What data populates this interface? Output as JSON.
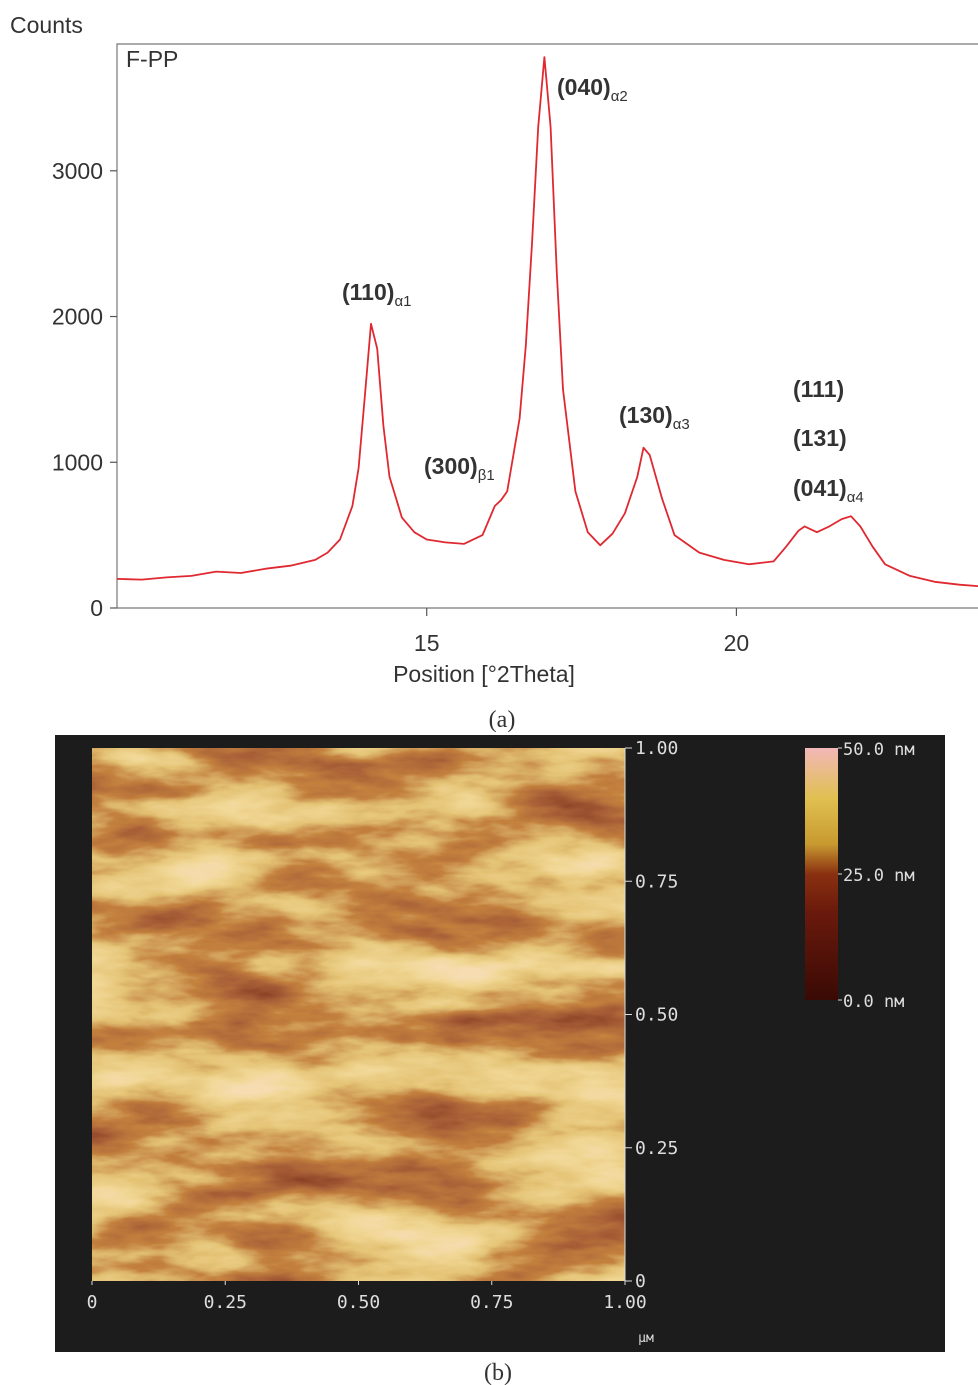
{
  "chart_data": [
    {
      "type": "line",
      "y_label": "Counts",
      "x_label": "Position [°2Theta]",
      "caption": "(a)",
      "xlim": [
        10,
        23.9
      ],
      "ylim": [
        0,
        3870
      ],
      "xticks": [
        15,
        20
      ],
      "yticks": [
        0,
        1000,
        2000,
        3000
      ],
      "x": [
        10.0,
        10.4,
        10.8,
        11.2,
        11.6,
        12.0,
        12.4,
        12.8,
        13.2,
        13.4,
        13.6,
        13.8,
        13.9,
        14.0,
        14.1,
        14.2,
        14.3,
        14.4,
        14.6,
        14.8,
        15.0,
        15.3,
        15.6,
        15.9,
        16.1,
        16.2,
        16.3,
        16.5,
        16.6,
        16.7,
        16.8,
        16.9,
        17.0,
        17.1,
        17.2,
        17.4,
        17.6,
        17.8,
        18.0,
        18.2,
        18.4,
        18.5,
        18.6,
        18.8,
        19.0,
        19.4,
        19.8,
        20.2,
        20.6,
        20.8,
        21.0,
        21.1,
        21.3,
        21.5,
        21.7,
        21.85,
        22.0,
        22.2,
        22.4,
        22.8,
        23.2,
        23.6,
        23.9
      ],
      "series": [
        {
          "name": "F-PP",
          "color": "#e02830",
          "values": [
            200,
            195,
            210,
            220,
            250,
            240,
            270,
            290,
            330,
            380,
            470,
            700,
            960,
            1450,
            1950,
            1780,
            1250,
            900,
            620,
            520,
            470,
            450,
            440,
            500,
            700,
            740,
            800,
            1300,
            1800,
            2500,
            3300,
            3780,
            3300,
            2300,
            1500,
            800,
            520,
            430,
            510,
            650,
            900,
            1100,
            1050,
            750,
            500,
            380,
            330,
            300,
            320,
            420,
            530,
            560,
            520,
            560,
            610,
            630,
            560,
            420,
            300,
            220,
            180,
            160,
            150
          ]
        }
      ],
      "annotations": [
        {
          "text": "(110)",
          "sub": "α1"
        },
        {
          "text": "(300)",
          "sub": "β1"
        },
        {
          "text": "(040)",
          "sub": "α2"
        },
        {
          "text": "(130)",
          "sub": "α3"
        },
        {
          "text": "(111)"
        },
        {
          "text": "(131)"
        },
        {
          "text": "(041)",
          "sub": "α4"
        }
      ]
    },
    {
      "type": "image",
      "caption": "(b)",
      "x_unit": "µм",
      "xlim": [
        0,
        1
      ],
      "ylim": [
        0,
        1
      ],
      "xticks": [
        0,
        {
          "value": 0.25,
          "label": "0.25"
        },
        {
          "value": 0.5,
          "label": "0.50"
        },
        {
          "value": 0.75,
          "label": "0.75"
        },
        {
          "value": 1,
          "label": "1.00"
        }
      ],
      "yticks": [
        0,
        {
          "value": 0.25,
          "label": "0.25"
        },
        {
          "value": 0.5,
          "label": "0.50"
        },
        {
          "value": 0.75,
          "label": "0.75"
        },
        {
          "value": 1,
          "label": "1.00"
        }
      ],
      "colorbar": {
        "lim": [
          0,
          50
        ],
        "ticks": [
          {
            "value": 0,
            "label": "0.0 nм"
          },
          {
            "value": 25,
            "label": "25.0 nм"
          },
          {
            "value": 50,
            "label": "50.0 nм"
          }
        ]
      }
    }
  ]
}
